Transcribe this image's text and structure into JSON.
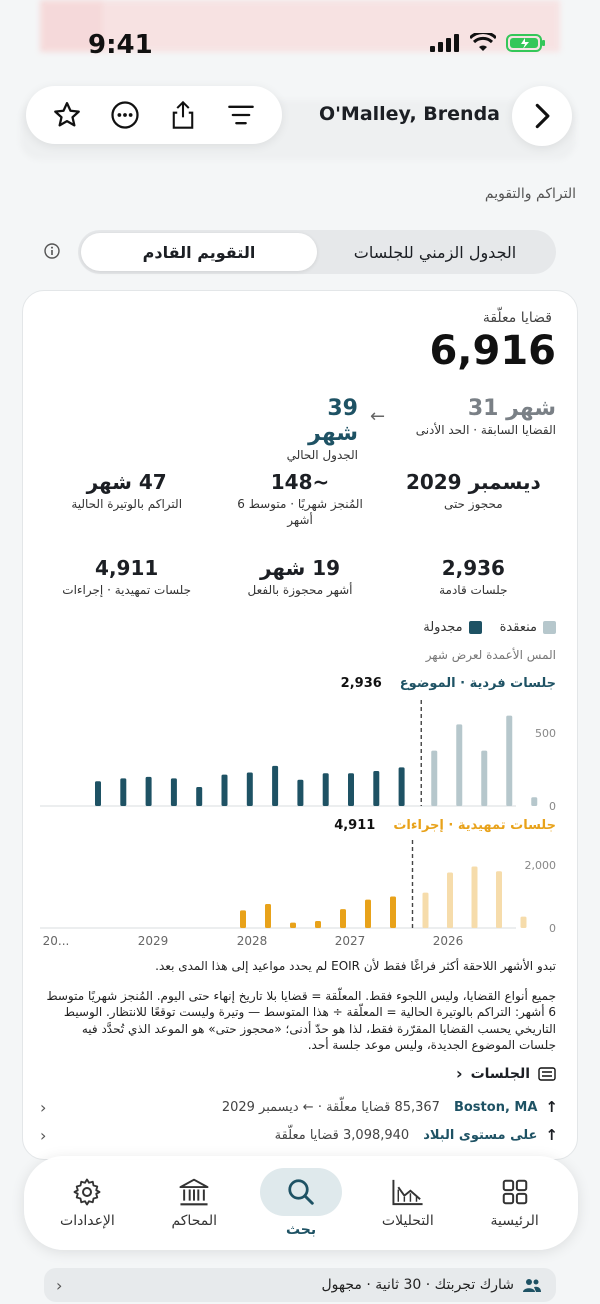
{
  "status": {
    "time": "9:41"
  },
  "nav": {
    "title": "O'Malley, Brenda"
  },
  "section_label": "التراكم والتقويم",
  "segments": [
    {
      "label": "الجدول الزمني للجلسات",
      "active": false
    },
    {
      "label": "التقويم القادم",
      "active": true
    }
  ],
  "pending": {
    "label": "قضايا معلّقة",
    "value": "6,916"
  },
  "compare": {
    "from_value": "31 شهر",
    "from_sub": "القضايا السابقة · الحد الأدنى",
    "to_value": "39 شهر",
    "to_sub": "الجدول الحالي"
  },
  "stats": [
    {
      "value": "ديسمبر 2029",
      "sub": "محجوز حتى"
    },
    {
      "value": "~148",
      "sub": "المُنجز شهريًا · متوسط 6 أشهر"
    },
    {
      "value": "47 شهر",
      "sub": "التراكم بالوتيرة الحالية"
    },
    {
      "value": "2,936",
      "sub": "جلسات قادمة"
    },
    {
      "value": "19 شهر",
      "sub": "أشهر محجوزة بالفعل"
    },
    {
      "value": "4,911",
      "sub": "جلسات تمهيدية · إجراءات"
    }
  ],
  "legend": {
    "pending_label": "منعقدة",
    "scheduled_label": "مجدولة",
    "hint": "المس الأعمدة لعرض شهر"
  },
  "chart_data": [
    {
      "type": "bar",
      "title": "جلسات فردية · الموضوع",
      "total_label": "2,936",
      "ylim": [
        0,
        700
      ],
      "yticks": [
        "0",
        "500"
      ],
      "series": [
        {
          "name": "مجدولة",
          "color": "#1e5264",
          "values": [
            170,
            190,
            200,
            190,
            130,
            215,
            230,
            275,
            180,
            225,
            225,
            240,
            265
          ]
        },
        {
          "name": "منعقدة",
          "color": "#b6c7cc",
          "values": [
            380,
            560,
            380,
            620,
            60
          ]
        }
      ]
    },
    {
      "type": "bar",
      "title": "جلسات تمهيدية · إجراءات",
      "total_label": "4,911",
      "ylim": [
        0,
        2600
      ],
      "yticks": [
        "0",
        "2,000"
      ],
      "series": [
        {
          "name": "مجدولة",
          "color": "#e8a21a",
          "values": [
            560,
            760,
            170,
            220,
            600,
            900,
            1000
          ]
        },
        {
          "name": "منعقدة",
          "color": "#f6dcab",
          "values": [
            1120,
            1760,
            1950,
            1800,
            360
          ]
        }
      ],
      "x_ticks": [
        "2026",
        "2027",
        "2028",
        "2029",
        "20..."
      ]
    }
  ],
  "notes": {
    "line1": "تبدو الأشهر اللاحقة أكثر فراغًا فقط لأن EOIR لم يحدد مواعيد إلى هذا المدى بعد.",
    "line2": "جميع أنواع القضايا، وليس اللجوء فقط. المعلّقة = قضايا بلا تاريخ إنهاء حتى اليوم. المُنجز شهريًا متوسط 6 أشهر: التراكم بالوتيرة الحالية = المعلّقة ÷ هذا المتوسط — وتيرة وليست توقعًا للانتظار. الوسيط التاريخي يحسب القضايا المقرّرة فقط، لذا هو حدّ أدنى؛ «محجوز حتى» هو الموعد الذي تُحدَّد فيه جلسات الموضوع الجديدة، وليس موعد جلسة أحد."
  },
  "hearings_link": "الجلسات",
  "rows": [
    {
      "city": "Boston, MA",
      "desc": "85,367 قضايا معلّقة · ← ديسمبر 2029"
    },
    {
      "city": "على مستوى البلاد",
      "desc": "3,098,940 قضايا معلّقة"
    }
  ],
  "tabs": [
    {
      "label": "الرئيسية",
      "icon": "grid-icon",
      "active": false
    },
    {
      "label": "التحليلات",
      "icon": "chart-icon",
      "active": false
    },
    {
      "label": "بحث",
      "icon": "search-icon",
      "active": true
    },
    {
      "label": "المحاكم",
      "icon": "court-icon",
      "active": false
    },
    {
      "label": "الإعدادات",
      "icon": "gear-icon",
      "active": false
    }
  ],
  "share": "شارك تجربتك · 30 ثانية · مجهول"
}
